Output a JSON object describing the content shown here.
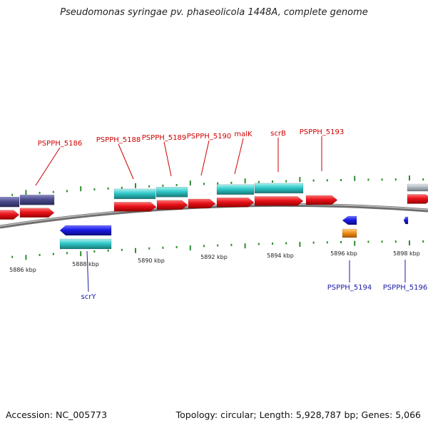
{
  "title": "Pseudomonas syringae pv. phaseolicola 1448A, complete genome",
  "footer": {
    "accession": "Accession: NC_005773",
    "summary": "Topology: circular; Length: 5,928,787 bp; Genes: 5,066"
  },
  "colors": {
    "backbone": "#8a8a8a",
    "tick": "#2e8b2e",
    "cds_red": "#e8121b",
    "rna_cyan": "#2fc8c8",
    "gene_navy": "#4b4b8c",
    "gene_blue": "#1a1ae6",
    "gene_orange": "#f0901a",
    "gene_gray": "#b0b8c0",
    "label_red": "#cc0000",
    "label_blue": "#1a1aa8"
  },
  "scale_labels": [
    "5886 kbp",
    "5888 kbp",
    "5890 kbp",
    "5892 kbp",
    "5894 kbp",
    "5896 kbp",
    "5898 kbp"
  ],
  "top_labels": [
    "PSPPH_5186",
    "PSPPH_5188",
    "PSPPH_5189",
    "PSPPH_5190",
    "malK",
    "scrB",
    "PSPPH_5193"
  ],
  "bottom_labels": [
    "scrY",
    "PSPPH_5194",
    "PSPPH_5196"
  ]
}
